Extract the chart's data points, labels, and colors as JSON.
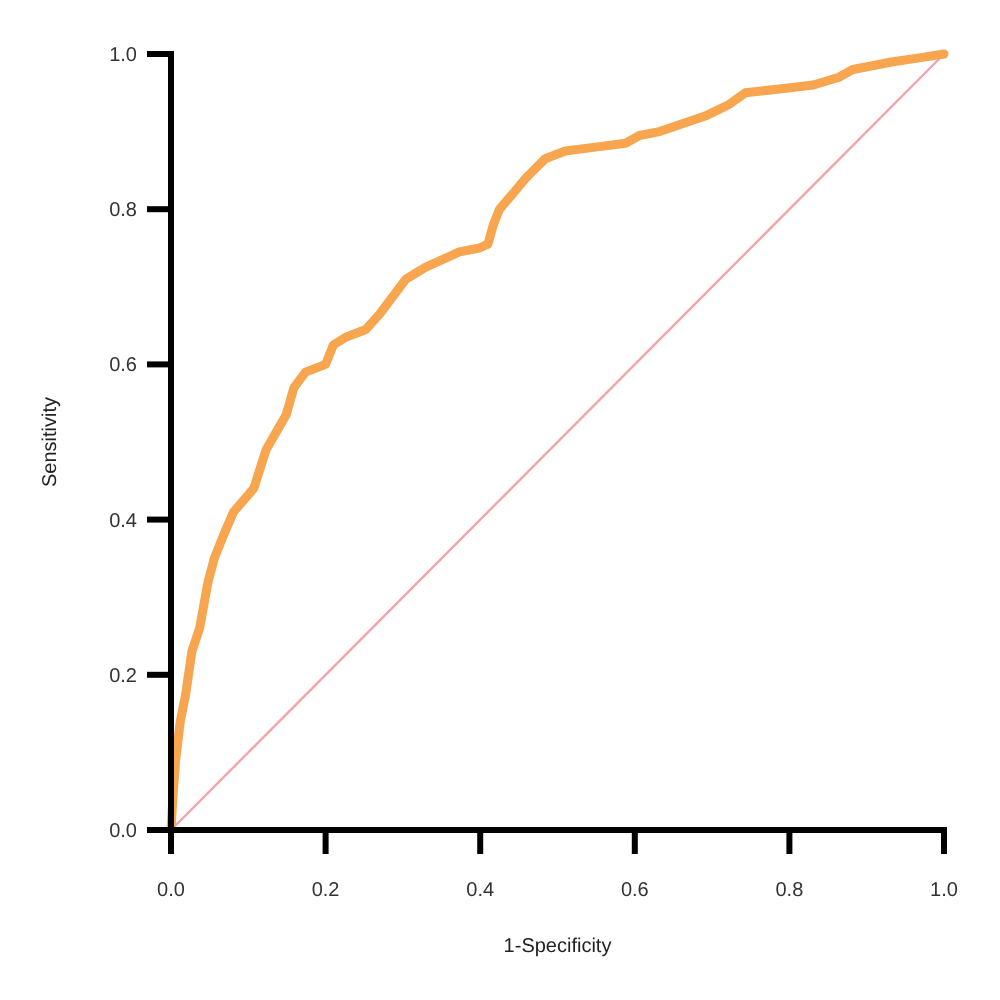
{
  "chart_data": {
    "type": "line",
    "xlabel": "1-Specificity",
    "ylabel": "Sensitivity",
    "xlim": [
      0,
      1
    ],
    "ylim": [
      0,
      1
    ],
    "xticks": [
      {
        "value": 0,
        "label": "0.0"
      },
      {
        "value": 0.2,
        "label": "0.2"
      },
      {
        "value": 0.4,
        "label": "0.4"
      },
      {
        "value": 0.6,
        "label": "0.6"
      },
      {
        "value": 0.8,
        "label": "0.8"
      },
      {
        "value": 1,
        "label": "1.0"
      }
    ],
    "yticks": [
      {
        "value": 0,
        "label": "0.0"
      },
      {
        "value": 0.2,
        "label": "0.2"
      },
      {
        "value": 0.4,
        "label": "0.4"
      },
      {
        "value": 0.6,
        "label": "0.6"
      },
      {
        "value": 0.8,
        "label": "0.8"
      },
      {
        "value": 1,
        "label": "1.0"
      }
    ],
    "grid": false,
    "marker": "none",
    "line_style": "solid",
    "series": [
      {
        "color": "#f7a54f",
        "x": [
          0,
          0.003,
          0.006,
          0.012,
          0.019,
          0.027,
          0.037,
          0.048,
          0.056,
          0.068,
          0.081,
          0.107,
          0.123,
          0.149,
          0.159,
          0.174,
          0.2,
          0.21,
          0.226,
          0.252,
          0.27,
          0.304,
          0.329,
          0.373,
          0.399,
          0.41,
          0.417,
          0.425,
          0.438,
          0.459,
          0.484,
          0.51,
          0.549,
          0.588,
          0.606,
          0.632,
          0.691,
          0.722,
          0.743,
          0.787,
          0.831,
          0.864,
          0.882,
          0.934,
          0.968,
          1
        ],
        "values": [
          0,
          0.05,
          0.09,
          0.14,
          0.175,
          0.23,
          0.26,
          0.32,
          0.35,
          0.38,
          0.41,
          0.44,
          0.49,
          0.535,
          0.57,
          0.59,
          0.6,
          0.625,
          0.635,
          0.645,
          0.665,
          0.71,
          0.725,
          0.745,
          0.75,
          0.755,
          0.78,
          0.8,
          0.815,
          0.84,
          0.865,
          0.875,
          0.88,
          0.885,
          0.895,
          0.9,
          0.92,
          0.935,
          0.95,
          0.955,
          0.96,
          0.97,
          0.98,
          0.99,
          0.995,
          1
        ]
      },
      {
        "color": "#f4a3ad",
        "x": [
          0,
          1
        ],
        "values": [
          0,
          1
        ]
      }
    ]
  }
}
